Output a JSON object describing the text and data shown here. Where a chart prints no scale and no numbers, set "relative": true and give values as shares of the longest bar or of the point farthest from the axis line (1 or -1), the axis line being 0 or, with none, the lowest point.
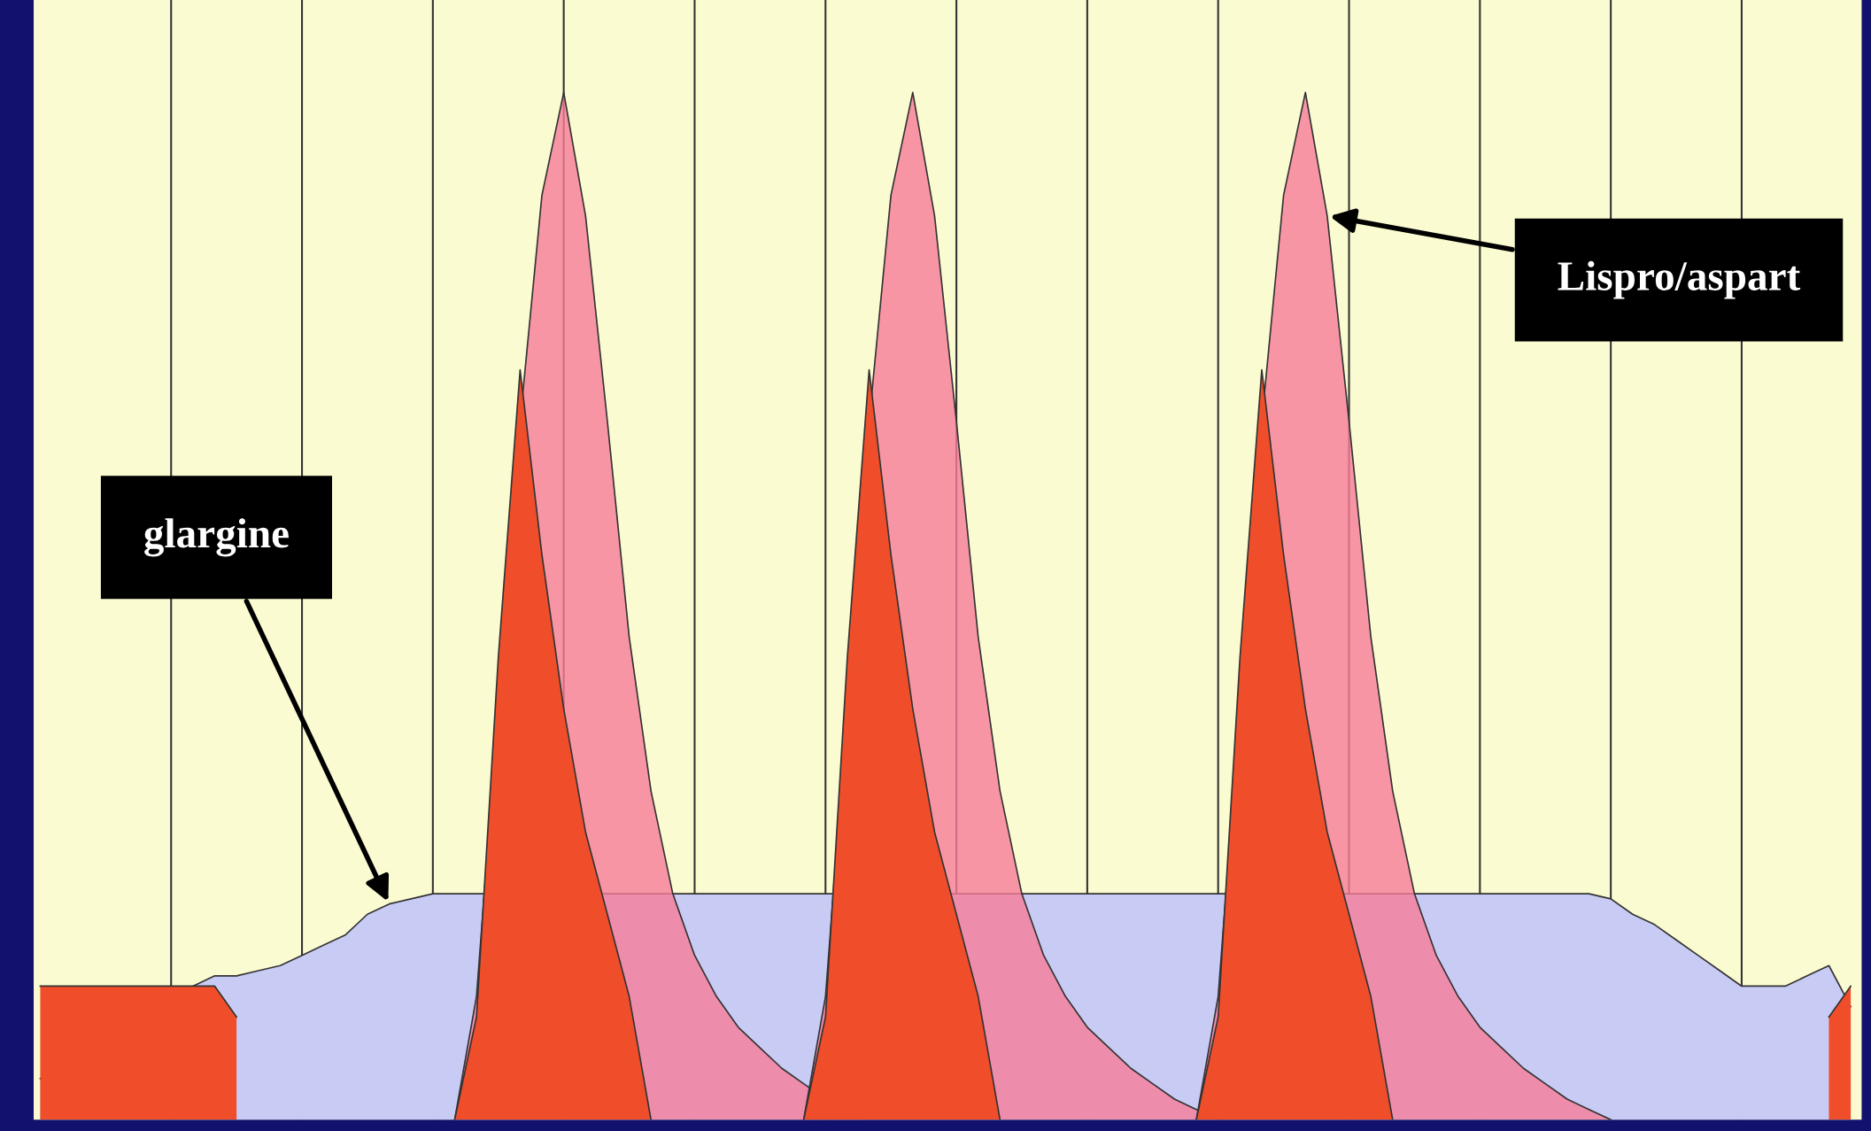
{
  "chart_data": {
    "type": "area",
    "relative": true,
    "grid": "x",
    "tick_labels": false,
    "legend": false,
    "annotations": [
      "glargine",
      "Lispro/aspart"
    ],
    "categories": [
      null,
      null,
      null,
      null,
      null,
      null,
      null,
      null,
      null,
      null,
      null,
      null,
      null,
      null,
      null,
      null,
      null,
      null,
      null,
      null,
      null,
      null,
      null,
      null,
      null,
      null,
      null,
      null,
      null,
      null,
      null,
      null,
      null,
      null,
      null,
      null,
      null,
      null,
      null,
      null,
      null,
      null,
      null,
      null,
      null,
      null,
      null,
      null,
      null,
      null,
      null,
      null,
      null,
      null,
      null,
      null,
      null,
      null,
      null,
      null,
      null,
      null,
      null,
      null,
      null,
      null,
      null,
      null,
      null,
      null,
      null,
      null,
      null,
      null,
      null,
      null,
      null,
      null,
      null,
      null,
      null,
      null,
      null,
      null
    ],
    "series": [
      {
        "color": "#c8ccf4",
        "values": [
          0.04,
          0.05,
          0.06,
          0.075,
          0.09,
          0.105,
          0.12,
          0.13,
          0.14,
          0.14,
          0.145,
          0.15,
          0.16,
          0.17,
          0.18,
          0.2,
          0.21,
          0.215,
          0.22,
          0.22,
          0.22,
          0.22,
          0.22,
          0.22,
          0.22,
          0.22,
          0.22,
          0.22,
          0.22,
          0.22,
          0.22,
          0.22,
          0.22,
          0.22,
          0.22,
          0.22,
          0.22,
          0.22,
          0.22,
          0.22,
          0.22,
          0.22,
          0.22,
          0.22,
          0.22,
          0.22,
          0.22,
          0.22,
          0.22,
          0.22,
          0.22,
          0.22,
          0.22,
          0.22,
          0.22,
          0.22,
          0.22,
          0.22,
          0.22,
          0.22,
          0.22,
          0.22,
          0.22,
          0.22,
          0.22,
          0.22,
          0.22,
          0.22,
          0.22,
          0.22,
          0.22,
          0.22,
          0.215,
          0.2,
          0.19,
          0.175,
          0.16,
          0.145,
          0.13,
          0.13,
          0.13,
          0.14,
          0.15,
          0.11
        ]
      },
      {
        "color": "#f87c98",
        "values": [
          null,
          null,
          null,
          null,
          null,
          null,
          null,
          null,
          null,
          null,
          null,
          null,
          null,
          null,
          null,
          null,
          null,
          null,
          null,
          0,
          0.12,
          0.4,
          0.68,
          0.9,
          1,
          0.88,
          0.68,
          0.47,
          0.32,
          0.22,
          0.16,
          0.12,
          0.09,
          0.07,
          0.05,
          0.035,
          0.02,
          0.01,
          0,
          null,
          null,
          null,
          null,
          null,
          null,
          null,
          null,
          null,
          null,
          null,
          null,
          null,
          null,
          null,
          null,
          null,
          null,
          null,
          null,
          null,
          null,
          null,
          null,
          null,
          null,
          null,
          null,
          null,
          null,
          null,
          null,
          null,
          null,
          null,
          null,
          null,
          null,
          null,
          null,
          null,
          null,
          null,
          null,
          null
        ]
      },
      {
        "color": "#f87c98",
        "values": [
          null,
          null,
          null,
          null,
          null,
          null,
          null,
          null,
          null,
          null,
          null,
          null,
          null,
          null,
          null,
          null,
          null,
          null,
          null,
          null,
          null,
          null,
          null,
          null,
          null,
          null,
          null,
          null,
          null,
          null,
          null,
          null,
          null,
          null,
          null,
          0,
          0.12,
          0.4,
          0.68,
          0.9,
          1,
          0.88,
          0.68,
          0.47,
          0.32,
          0.22,
          0.16,
          0.12,
          0.09,
          0.07,
          0.05,
          0.035,
          0.02,
          0.01,
          0,
          null,
          null,
          null,
          null,
          null,
          null,
          null,
          null,
          null,
          null,
          null,
          null,
          null,
          null,
          null,
          null,
          null,
          null,
          null,
          null,
          null,
          null,
          null,
          null,
          null,
          null,
          null,
          null,
          null
        ]
      },
      {
        "color": "#f87c98",
        "values": [
          null,
          null,
          null,
          null,
          null,
          null,
          null,
          null,
          null,
          null,
          null,
          null,
          null,
          null,
          null,
          null,
          null,
          null,
          null,
          null,
          null,
          null,
          null,
          null,
          null,
          null,
          null,
          null,
          null,
          null,
          null,
          null,
          null,
          null,
          null,
          null,
          null,
          null,
          null,
          null,
          null,
          null,
          null,
          null,
          null,
          null,
          null,
          null,
          null,
          null,
          null,
          null,
          null,
          0,
          0.12,
          0.4,
          0.68,
          0.9,
          1,
          0.88,
          0.68,
          0.47,
          0.32,
          0.22,
          0.16,
          0.12,
          0.09,
          0.07,
          0.05,
          0.035,
          0.02,
          0.01,
          0,
          null,
          null,
          null,
          null,
          null,
          null,
          null,
          null,
          null,
          null,
          null
        ]
      },
      {
        "color": "#f04e2a",
        "values": [
          0.13,
          0.13,
          0.13,
          0.13,
          0.13,
          0.13,
          0.13,
          0.13,
          0.13,
          0.1,
          null,
          null,
          null,
          null,
          null,
          null,
          null,
          null,
          null,
          0,
          0.1,
          0.45,
          0.73,
          0.55,
          0.4,
          0.28,
          0.2,
          0.12,
          0,
          null,
          null,
          null,
          null,
          null,
          null,
          0,
          0.1,
          0.45,
          0.73,
          0.55,
          0.4,
          0.28,
          0.2,
          0.12,
          0,
          null,
          null,
          null,
          null,
          null,
          null,
          null,
          null,
          0,
          0.1,
          0.45,
          0.73,
          0.55,
          0.4,
          0.28,
          0.2,
          0.12,
          0,
          null,
          null,
          null,
          null,
          null,
          null,
          null,
          null,
          null,
          null,
          null,
          null,
          null,
          null,
          null,
          null,
          null,
          null,
          null,
          0.1,
          0.13
        ]
      }
    ]
  }
}
